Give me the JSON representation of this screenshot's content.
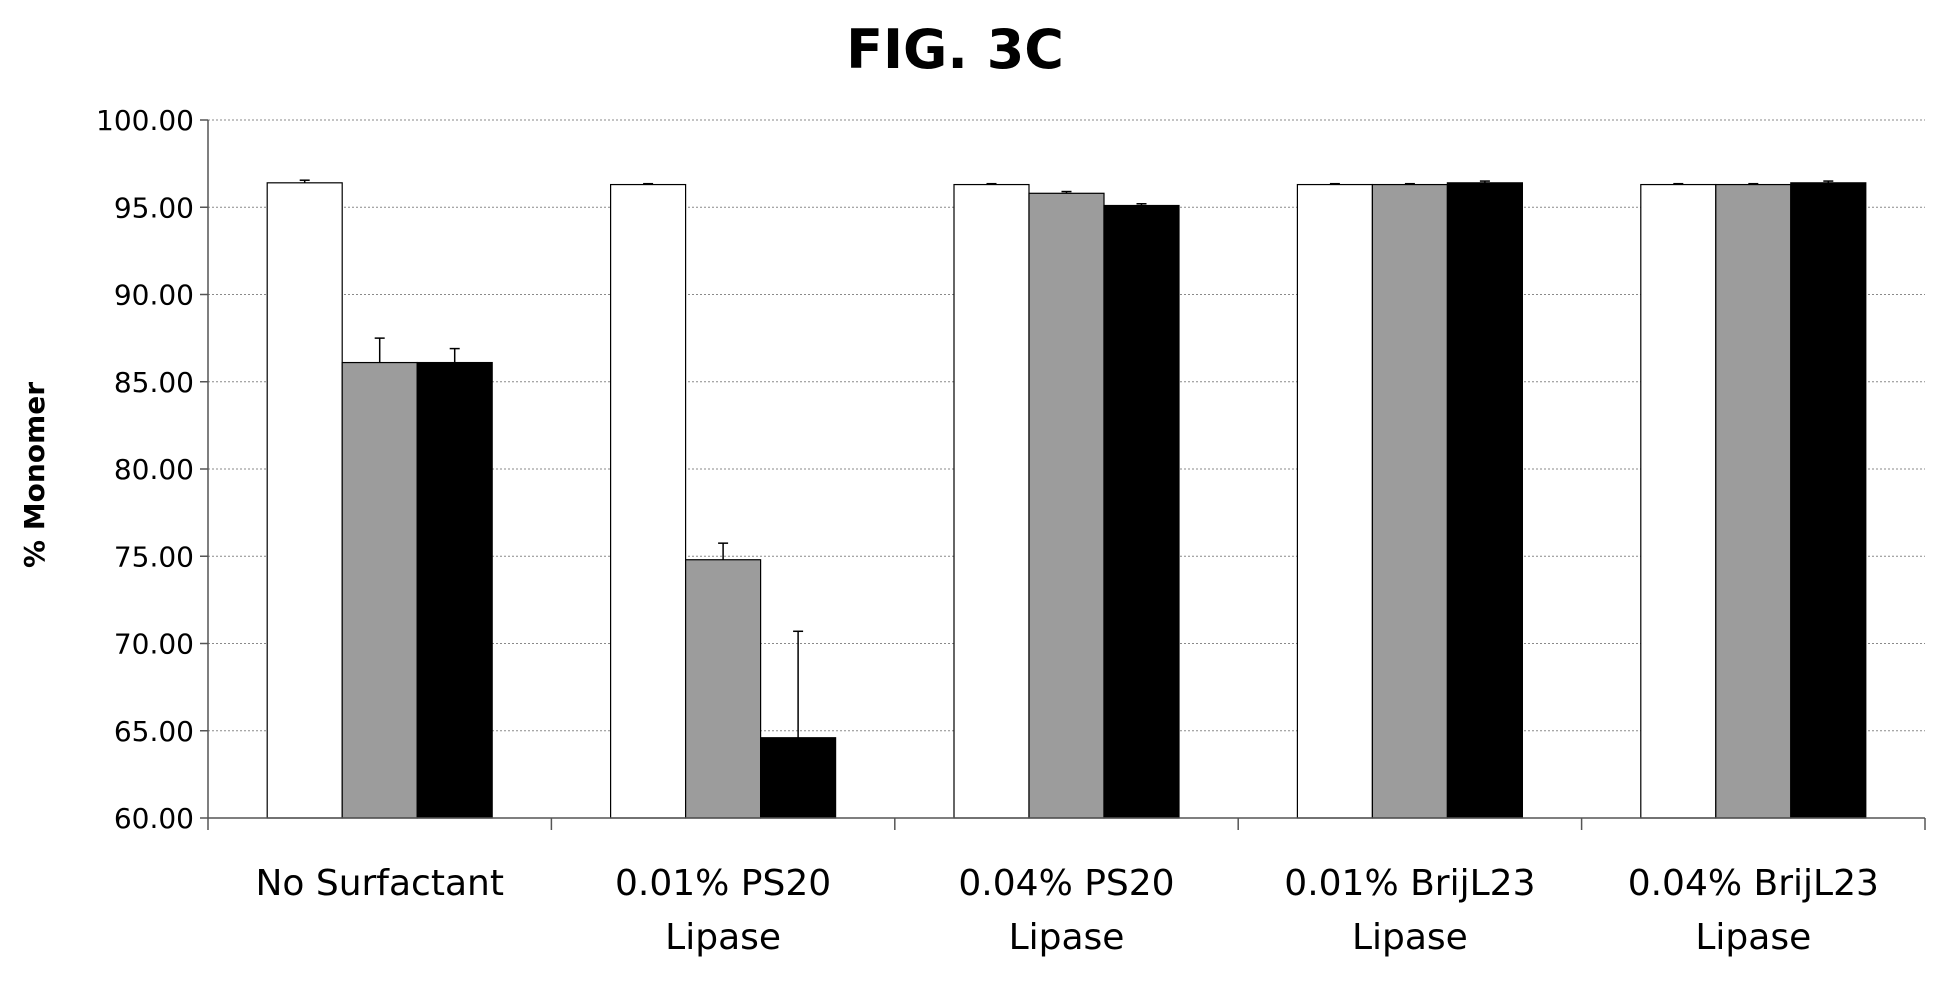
{
  "chart_data": {
    "type": "bar",
    "title": "FIG. 3C",
    "xlabel": "",
    "ylabel": "% Monomer",
    "ylim": [
      60,
      100
    ],
    "yticks": [
      "60.00",
      "65.00",
      "70.00",
      "75.00",
      "80.00",
      "85.00",
      "90.00",
      "95.00",
      "100.00"
    ],
    "grid": true,
    "legend": "none",
    "categories": [
      [
        "No Surfactant"
      ],
      [
        "0.01% PS20",
        "Lipase"
      ],
      [
        "0.04% PS20",
        "Lipase"
      ],
      [
        "0.01% BrijL23",
        "Lipase"
      ],
      [
        "0.04% BrijL23",
        "Lipase"
      ]
    ],
    "series": [
      {
        "color": "#ffffff",
        "values": [
          96.4,
          96.3,
          96.3,
          96.3,
          96.3
        ],
        "errors": [
          0.15,
          0.05,
          0.05,
          0.05,
          0.05
        ]
      },
      {
        "color": "#9c9c9c",
        "values": [
          86.1,
          74.8,
          95.8,
          96.3,
          96.3
        ],
        "errors": [
          1.4,
          0.95,
          0.1,
          0.05,
          0.05
        ]
      },
      {
        "color": "#000000",
        "values": [
          86.1,
          64.6,
          95.1,
          96.4,
          96.4
        ],
        "errors": [
          0.8,
          6.1,
          0.1,
          0.1,
          0.1
        ]
      }
    ]
  }
}
